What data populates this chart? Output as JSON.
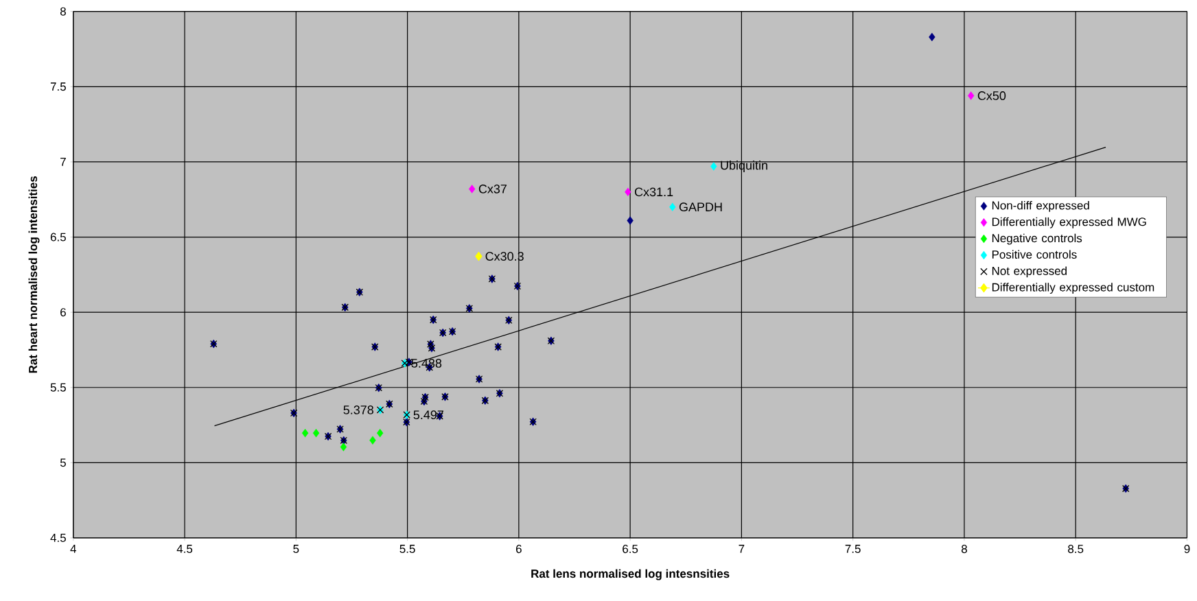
{
  "chart_data": {
    "type": "scatter",
    "xlabel": "Rat lens normalised log intesnsities",
    "ylabel": "Rat heart normalised log intensities",
    "xlim": [
      4,
      9
    ],
    "ylim": [
      4.5,
      8
    ],
    "xticks": [
      4,
      4.5,
      5,
      5.5,
      6,
      6.5,
      7,
      7.5,
      8,
      8.5,
      9
    ],
    "yticks": [
      4.5,
      5,
      5.5,
      6,
      6.5,
      7,
      7.5,
      8
    ],
    "grid": true,
    "legend": "right",
    "series": [
      {
        "name": "Non-diff expressed",
        "color": "#000080",
        "marker": "diamond",
        "x": [
          7.855,
          6.5,
          4.63,
          5.285,
          5.22,
          5.354,
          5.371,
          5.419,
          4.99,
          5.198,
          5.144,
          5.214,
          5.88,
          5.994,
          5.778,
          5.616,
          5.955,
          5.659,
          5.702,
          5.604,
          5.609,
          5.907,
          6.145,
          5.507,
          5.599,
          5.822,
          5.58,
          5.575,
          5.669,
          5.849,
          5.914,
          5.645,
          5.496,
          6.064,
          8.725
        ],
        "values": [
          7.83,
          6.61,
          5.79,
          6.134,
          6.033,
          5.77,
          5.498,
          5.39,
          5.33,
          5.223,
          5.175,
          5.148,
          6.222,
          6.174,
          6.026,
          5.95,
          5.947,
          5.864,
          5.872,
          5.788,
          5.762,
          5.77,
          5.81,
          5.669,
          5.634,
          5.556,
          5.435,
          5.408,
          5.438,
          5.413,
          5.461,
          5.31,
          5.27,
          5.272,
          4.828
        ]
      },
      {
        "name": "Differentially expressed MWG",
        "color": "#ff00ff",
        "marker": "diamond",
        "x": [
          8.03,
          5.79,
          6.49
        ],
        "values": [
          7.44,
          6.82,
          6.8
        ]
      },
      {
        "name": "Negative controls",
        "color": "#00ff00",
        "marker": "diamond",
        "x": [
          5.041,
          5.09,
          5.213,
          5.344,
          5.377
        ],
        "values": [
          5.197,
          5.197,
          5.104,
          5.149,
          5.197
        ]
      },
      {
        "name": "Positive controls",
        "color": "#00ffff",
        "marker": "diamond",
        "x": [
          6.875,
          6.69,
          5.488,
          5.378,
          5.497
        ],
        "values": [
          6.97,
          6.7,
          5.661,
          5.351,
          5.318
        ]
      },
      {
        "name": "Not expressed",
        "color": "#000000",
        "marker": "cross",
        "x": [
          4.63,
          5.285,
          5.22,
          5.354,
          5.371,
          5.419,
          4.99,
          5.198,
          5.144,
          5.214,
          5.88,
          5.994,
          5.778,
          5.616,
          5.955,
          5.659,
          5.702,
          5.604,
          5.609,
          5.907,
          6.145,
          5.507,
          5.599,
          5.822,
          5.58,
          5.575,
          5.669,
          5.849,
          5.914,
          5.645,
          5.496,
          6.064,
          8.725,
          5.488,
          5.378,
          5.497
        ],
        "values": [
          5.79,
          6.134,
          6.033,
          5.77,
          5.498,
          5.39,
          5.33,
          5.223,
          5.175,
          5.148,
          6.222,
          6.174,
          6.026,
          5.95,
          5.947,
          5.864,
          5.872,
          5.788,
          5.762,
          5.77,
          5.81,
          5.669,
          5.634,
          5.556,
          5.435,
          5.408,
          5.438,
          5.413,
          5.461,
          5.31,
          5.27,
          5.272,
          4.828,
          5.661,
          5.351,
          5.318
        ]
      },
      {
        "name": "Differentially expressed custom",
        "type": "line",
        "color": "#ffff00",
        "marker": "diamond",
        "x": [
          5.82
        ],
        "values": [
          6.372
        ]
      },
      {
        "type": "line",
        "color": "#000000",
        "marker": "none",
        "x": [
          4.634,
          8.635
        ],
        "values": [
          5.245,
          7.097
        ]
      }
    ],
    "annotations": [
      {
        "text": "Cx50",
        "x": 8.03,
        "y": 7.44
      },
      {
        "text": "Cx37",
        "x": 5.79,
        "y": 6.82
      },
      {
        "text": "Cx31.1",
        "x": 6.49,
        "y": 6.8
      },
      {
        "text": "Ubiquitin",
        "x": 6.875,
        "y": 6.97
      },
      {
        "text": "GAPDH",
        "x": 6.69,
        "y": 6.7
      },
      {
        "text": "Cx30.3",
        "x": 5.82,
        "y": 6.372
      },
      {
        "text": "5.488",
        "x": 5.488,
        "y": 5.661
      },
      {
        "text": "5.378",
        "x": 5.378,
        "y": 5.351
      },
      {
        "text": "5.497",
        "x": 5.497,
        "y": 5.318
      }
    ]
  }
}
